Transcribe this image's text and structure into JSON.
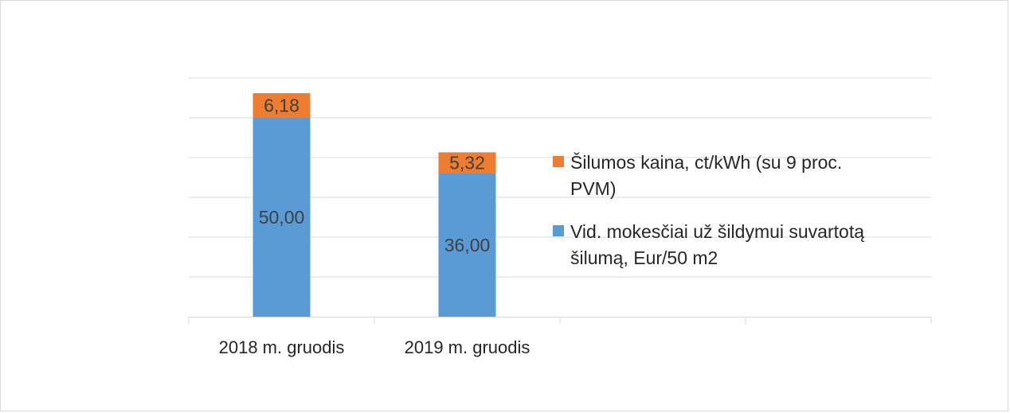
{
  "chart_data": {
    "type": "bar",
    "stacked": true,
    "categories": [
      "2018 m. gruodis",
      "2019 m. gruodis",
      "",
      ""
    ],
    "series": [
      {
        "name": "Vid. mokesčiai už šildymui suvartotą šilumą, Eur/50 m2",
        "values": [
          50.0,
          36.0,
          null,
          null
        ],
        "labels": [
          "50,00",
          "36,00",
          "",
          ""
        ],
        "color": "#5b9bd5"
      },
      {
        "name": "Šilumos kaina, ct/kWh (su 9 proc. PVM)",
        "values": [
          6.18,
          5.32,
          null,
          null
        ],
        "labels": [
          "6,18",
          "5,32",
          "",
          ""
        ],
        "color": "#ed7d31"
      }
    ],
    "ylim": [
      0,
      60
    ],
    "y_gridline_step": 10,
    "grid": true,
    "legend_position": "right",
    "title": "",
    "xlabel": "",
    "ylabel": ""
  }
}
